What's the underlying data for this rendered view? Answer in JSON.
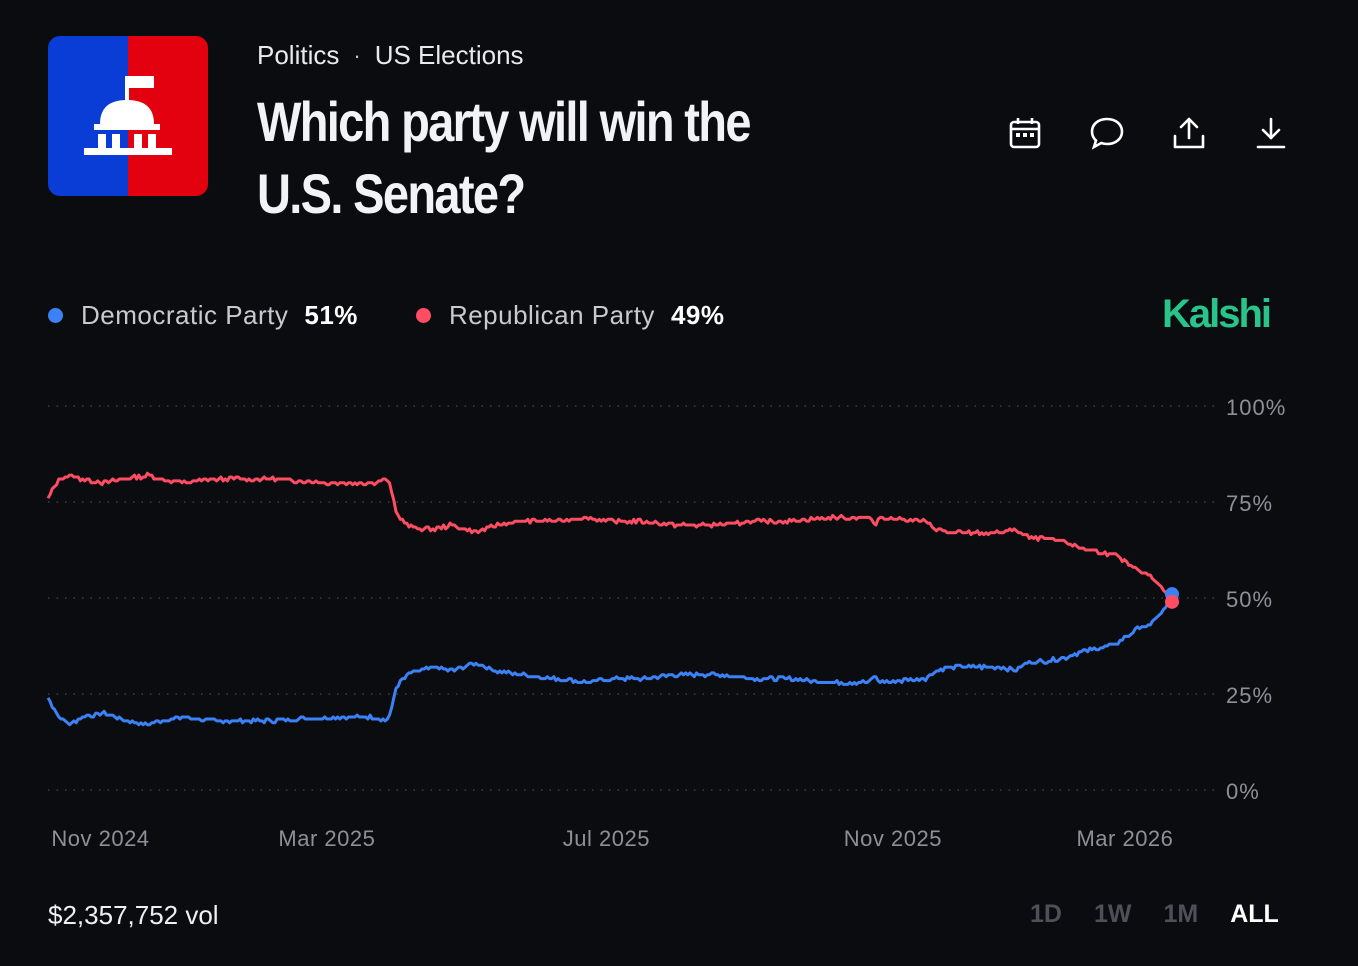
{
  "header": {
    "category": "Politics",
    "separator": "·",
    "subcategory": "US Elections",
    "title": "Which party will win the U.S. Senate?"
  },
  "actions": [
    {
      "name": "calendar-icon"
    },
    {
      "name": "comment-icon"
    },
    {
      "name": "share-icon"
    },
    {
      "name": "download-icon"
    }
  ],
  "brand": "Kalshi",
  "colors": {
    "democratic": "#3b82f6",
    "republican": "#ff4d63",
    "brand": "#28c48a",
    "logo_blue": "#0a3dd6",
    "logo_red": "#e3000f"
  },
  "footer": {
    "volume": "$2,357,752 vol",
    "ranges": [
      "1D",
      "1W",
      "1M",
      "ALL"
    ],
    "active_range": "ALL"
  },
  "chart_data": {
    "type": "line",
    "y_ticks": [
      "100%",
      "75%",
      "50%",
      "25%",
      "0%"
    ],
    "x_ticks": [
      "Nov 2024",
      "Mar 2025",
      "Jul 2025",
      "Nov 2025",
      "Mar 2026"
    ],
    "ylim": [
      0,
      100
    ],
    "grid": true,
    "series": [
      {
        "name": "Democratic Party",
        "label_value": "51%",
        "x": [
          0,
          0.01,
          0.02,
          0.03,
          0.05,
          0.07,
          0.09,
          0.1,
          0.12,
          0.15,
          0.2,
          0.25,
          0.29,
          0.3,
          0.305,
          0.31,
          0.32,
          0.33,
          0.345,
          0.36,
          0.37,
          0.38,
          0.4,
          0.42,
          0.45,
          0.48,
          0.5,
          0.53,
          0.56,
          0.6,
          0.63,
          0.66,
          0.7,
          0.73,
          0.735,
          0.74,
          0.78,
          0.79,
          0.8,
          0.85,
          0.86,
          0.87,
          0.9,
          0.91,
          0.92,
          0.95,
          0.97,
          0.98,
          0.99,
          0.995,
          1.0
        ],
        "values": [
          24,
          19,
          17,
          19,
          20,
          18,
          17,
          18,
          19,
          18,
          18,
          19,
          19,
          18,
          20,
          27,
          30,
          31,
          32,
          31,
          32,
          33,
          31,
          30,
          29,
          28,
          29,
          29,
          30,
          30,
          29,
          29,
          28,
          28,
          30,
          28,
          29,
          31,
          32,
          32,
          31,
          33,
          34,
          35,
          36,
          38,
          42,
          43,
          46,
          48,
          51
        ]
      },
      {
        "name": "Republican Party",
        "label_value": "49%",
        "x": [
          0,
          0.01,
          0.02,
          0.03,
          0.05,
          0.07,
          0.09,
          0.1,
          0.12,
          0.15,
          0.2,
          0.25,
          0.29,
          0.3,
          0.305,
          0.31,
          0.32,
          0.33,
          0.345,
          0.36,
          0.37,
          0.38,
          0.4,
          0.42,
          0.45,
          0.48,
          0.5,
          0.53,
          0.56,
          0.6,
          0.63,
          0.66,
          0.7,
          0.73,
          0.735,
          0.74,
          0.78,
          0.79,
          0.8,
          0.85,
          0.86,
          0.87,
          0.9,
          0.91,
          0.92,
          0.95,
          0.97,
          0.98,
          0.99,
          0.995,
          1.0
        ],
        "values": [
          76,
          81,
          82,
          81,
          80,
          81,
          82,
          81,
          80,
          81,
          81,
          80,
          80,
          81,
          79,
          72,
          69,
          68,
          68,
          69,
          68,
          67,
          69,
          70,
          70,
          71,
          70,
          70,
          69,
          69,
          70,
          70,
          71,
          71,
          69,
          71,
          70,
          68,
          67,
          67,
          68,
          66,
          65,
          64,
          63,
          61,
          57,
          56,
          53,
          51,
          49
        ]
      }
    ]
  }
}
